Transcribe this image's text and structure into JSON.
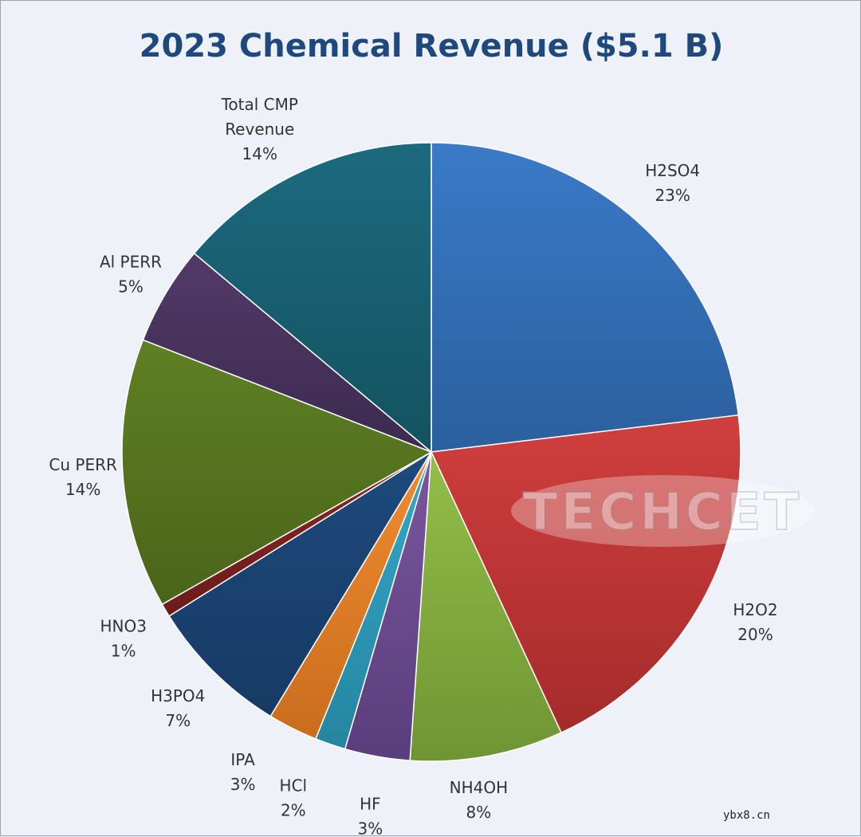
{
  "chart_data": {
    "type": "pie",
    "title": "2023 Chemical Revenue ($5.1 B)",
    "title_color": "#1f497d",
    "start_angle_deg": 0,
    "direction": "clockwise",
    "slices": [
      {
        "label": "H2SO4",
        "pct_text": "23%",
        "value": 23.1,
        "color": "#3a7ac8",
        "color_dark": "#2b5f9e"
      },
      {
        "label": "H2O2",
        "pct_text": "20%",
        "value": 20.0,
        "color": "#d03f3e",
        "color_dark": "#a52b2b"
      },
      {
        "label": "NH4OH",
        "pct_text": "8%",
        "value": 8.0,
        "color": "#93be49",
        "color_dark": "#6f9533"
      },
      {
        "label": "HF",
        "pct_text": "3%",
        "value": 3.4,
        "color": "#7a579e",
        "color_dark": "#5a3d7c"
      },
      {
        "label": "HCl",
        "pct_text": "2%",
        "value": 1.6,
        "color": "#34a9c8",
        "color_dark": "#2585a0"
      },
      {
        "label": "IPA",
        "pct_text": "3%",
        "value": 2.6,
        "color": "#f18c31",
        "color_dark": "#c96d1d"
      },
      {
        "label": "H3PO4",
        "pct_text": "7%",
        "value": 7.4,
        "color": "#1e4a7e",
        "color_dark": "#163a63"
      },
      {
        "label": "HNO3",
        "pct_text": "1%",
        "value": 0.7,
        "color": "#8c2626",
        "color_dark": "#6b1b1b"
      },
      {
        "label": "Cu PERR",
        "pct_text": "14%",
        "value": 14.1,
        "color": "#5f8025",
        "color_dark": "#4a6419"
      },
      {
        "label": "Al PERR",
        "pct_text": "5%",
        "value": 5.2,
        "color": "#523a68",
        "color_dark": "#3c2a4f"
      },
      {
        "label": "Total CMP Revenue",
        "label_lines": [
          "Total CMP",
          "Revenue"
        ],
        "pct_text": "14%",
        "value": 13.9,
        "color": "#1c6a7f",
        "color_dark": "#14525f"
      }
    ]
  },
  "watermark": {
    "text": "TECHCET"
  },
  "footer": {
    "site": "ybx8.cn"
  }
}
